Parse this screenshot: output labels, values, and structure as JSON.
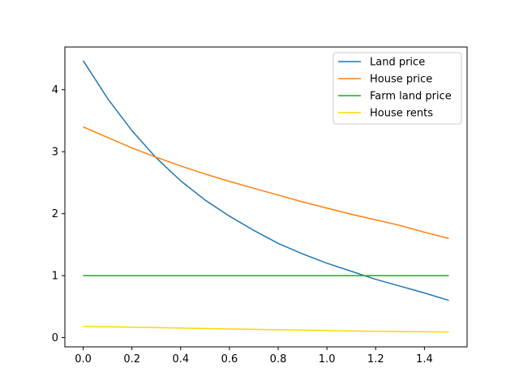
{
  "chart_data": {
    "type": "line",
    "title": "",
    "xlabel": "",
    "ylabel": "",
    "xlim": [
      -0.075,
      1.575
    ],
    "ylim": [
      -0.15,
      4.69
    ],
    "xticks": [
      0.0,
      0.2,
      0.4,
      0.6,
      0.8,
      1.0,
      1.2,
      1.4
    ],
    "xtick_labels": [
      "0.0",
      "0.2",
      "0.4",
      "0.6",
      "0.8",
      "1.0",
      "1.2",
      "1.4"
    ],
    "yticks": [
      0,
      1,
      2,
      3,
      4
    ],
    "ytick_labels": [
      "0",
      "1",
      "2",
      "3",
      "4"
    ],
    "grid": false,
    "legend_position": "top-right",
    "series": [
      {
        "name": "Land price",
        "color": "#1f77b4",
        "x": [
          0.0,
          0.1,
          0.2,
          0.3,
          0.4,
          0.5,
          0.6,
          0.7,
          0.8,
          0.9,
          1.0,
          1.1,
          1.2,
          1.3,
          1.4,
          1.5
        ],
        "values": [
          4.47,
          3.86,
          3.34,
          2.9,
          2.53,
          2.22,
          1.96,
          1.73,
          1.52,
          1.35,
          1.2,
          1.07,
          0.94,
          0.83,
          0.72,
          0.6
        ]
      },
      {
        "name": "House price",
        "color": "#ff7f0e",
        "x": [
          0.0,
          0.1,
          0.2,
          0.3,
          0.4,
          0.5,
          0.6,
          0.7,
          0.8,
          0.9,
          1.0,
          1.1,
          1.2,
          1.3,
          1.4,
          1.5
        ],
        "values": [
          3.4,
          3.23,
          3.06,
          2.91,
          2.77,
          2.64,
          2.52,
          2.41,
          2.3,
          2.19,
          2.09,
          1.99,
          1.9,
          1.81,
          1.7,
          1.6
        ]
      },
      {
        "name": "Farm land price",
        "color": "#2ca02c",
        "x": [
          0.0,
          0.5,
          1.0,
          1.5
        ],
        "values": [
          1.0,
          1.0,
          1.0,
          1.0
        ]
      },
      {
        "name": "House rents",
        "color": "#ffd700",
        "x": [
          0.0,
          0.3,
          0.6,
          0.9,
          1.2,
          1.5
        ],
        "values": [
          0.18,
          0.16,
          0.14,
          0.12,
          0.1,
          0.09
        ]
      }
    ]
  }
}
